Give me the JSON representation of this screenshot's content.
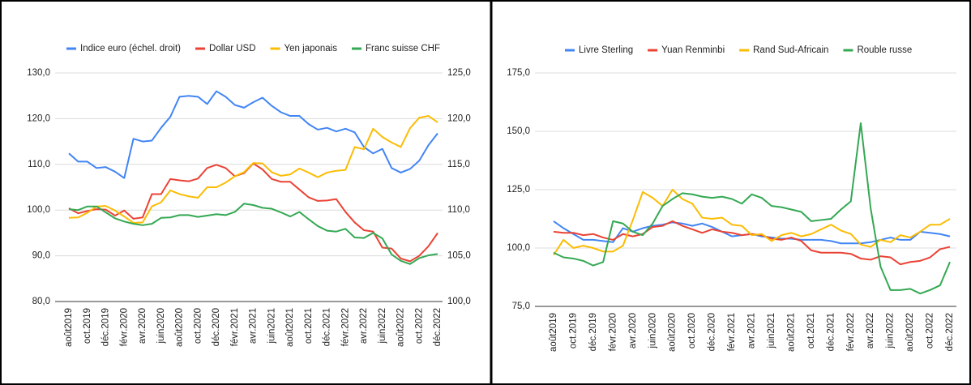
{
  "chart_data": [
    {
      "type": "line",
      "categories": [
        "août2019",
        null,
        "oct.2019",
        null,
        "déc.2019",
        null,
        "févr.2020",
        null,
        "avr.2020",
        null,
        "juin2020",
        null,
        "août2020",
        null,
        "oct.2020",
        null,
        "déc.2020",
        null,
        "févr.2021",
        null,
        "avr.2021",
        null,
        "juin2021",
        null,
        "août2021",
        null,
        "oct.2021",
        null,
        "déc.2021",
        null,
        "févr.2022",
        null,
        "avr.2022",
        null,
        "juin2022",
        null,
        "août2022",
        null,
        "oct.2022",
        null,
        "déc.2022"
      ],
      "series": [
        {
          "name": "Indice euro (échel. droit)",
          "color": "#4285f4",
          "axis": "y2",
          "values": [
            116.2,
            115.3,
            115.3,
            114.6,
            114.7,
            114.2,
            113.5,
            117.8,
            117.5,
            117.6,
            119.0,
            120.2,
            122.4,
            122.5,
            122.4,
            121.6,
            123.0,
            122.4,
            121.5,
            121.2,
            121.8,
            122.3,
            121.4,
            120.7,
            120.3,
            120.3,
            119.4,
            118.8,
            119.0,
            118.6,
            118.9,
            118.5,
            116.9,
            116.2,
            116.7,
            114.6,
            114.1,
            114.5,
            115.4,
            117.1,
            118.4
          ]
        },
        {
          "name": "Dollar USD",
          "color": "#ea4335",
          "values": [
            100.4,
            99.3,
            99.8,
            100.2,
            100.1,
            98.8,
            99.9,
            98.1,
            98.4,
            103.5,
            103.5,
            106.8,
            106.5,
            106.3,
            106.9,
            109.2,
            109.9,
            109.2,
            107.4,
            108.1,
            110.2,
            108.9,
            106.8,
            106.2,
            106.2,
            104.5,
            102.8,
            102.0,
            102.1,
            102.4,
            99.6,
            97.3,
            95.6,
            95.3,
            91.8,
            91.6,
            89.4,
            88.8,
            90.0,
            92.1,
            95.0
          ]
        },
        {
          "name": "Yen japonais",
          "color": "#fbbc04",
          "values": [
            98.3,
            98.4,
            99.4,
            100.8,
            100.9,
            99.9,
            98.6,
            97.2,
            97.3,
            100.8,
            101.7,
            104.3,
            103.5,
            103.0,
            102.7,
            105.0,
            105.0,
            106.0,
            107.4,
            108.3,
            110.3,
            110.2,
            108.3,
            107.5,
            107.8,
            109.1,
            108.2,
            107.2,
            108.2,
            108.6,
            108.8,
            113.8,
            113.3,
            117.8,
            116.0,
            114.8,
            113.8,
            117.9,
            120.2,
            120.6,
            119.2
          ]
        },
        {
          "name": "Franc suisse CHF",
          "color": "#34a853",
          "values": [
            100.2,
            100.0,
            100.8,
            100.8,
            99.5,
            98.2,
            97.5,
            97.0,
            96.7,
            97.0,
            98.3,
            98.4,
            98.9,
            98.9,
            98.5,
            98.8,
            99.1,
            98.9,
            99.6,
            101.4,
            101.1,
            100.5,
            100.3,
            99.5,
            98.6,
            99.6,
            98.0,
            96.5,
            95.5,
            95.3,
            95.9,
            94.0,
            93.9,
            95.0,
            93.8,
            90.3,
            88.9,
            88.2,
            89.5,
            90.1,
            90.4
          ]
        }
      ],
      "ylim": [
        80,
        130
      ],
      "yticks": [
        {
          "value": 80,
          "label": "80,0"
        },
        {
          "value": 90,
          "label": "90,0"
        },
        {
          "value": 100,
          "label": "100,0"
        },
        {
          "value": 110,
          "label": "110,0"
        },
        {
          "value": 120,
          "label": "120,0"
        },
        {
          "value": 130,
          "label": "130,0"
        }
      ],
      "y2lim": [
        100,
        125
      ],
      "y2ticks": [
        {
          "value": 100,
          "label": "100,0"
        },
        {
          "value": 105,
          "label": "105,0"
        },
        {
          "value": 110,
          "label": "110,0"
        },
        {
          "value": 115,
          "label": "115,0"
        },
        {
          "value": 120,
          "label": "120,0"
        },
        {
          "value": 125,
          "label": "125,0"
        }
      ],
      "grid": true,
      "legend": "top"
    },
    {
      "type": "line",
      "categories": [
        "août2019",
        null,
        "oct.2019",
        null,
        "déc.2019",
        null,
        "févr.2020",
        null,
        "avr.2020",
        null,
        "juin2020",
        null,
        "août2020",
        null,
        "oct.2020",
        null,
        "déc.2020",
        null,
        "févr.2021",
        null,
        "avr.2021",
        null,
        "juin2021",
        null,
        "août2021",
        null,
        "oct.2021",
        null,
        "déc.2021",
        null,
        "févr.2022",
        null,
        "avr.2022",
        null,
        "juin2022",
        null,
        "août2022",
        null,
        "oct.2022",
        null,
        "déc.2022"
      ],
      "series": [
        {
          "name": "Livre Sterling",
          "color": "#4285f4",
          "values": [
            111.5,
            108.5,
            106,
            103.5,
            103.5,
            103,
            102.5,
            108.5,
            107,
            108.5,
            109.5,
            110,
            111,
            110.5,
            109.5,
            110.5,
            109,
            107,
            105,
            105.5,
            106,
            105,
            104.5,
            104,
            104,
            103.5,
            103.5,
            103.5,
            103,
            102,
            102,
            102,
            102.5,
            103.5,
            104.5,
            103.5,
            103.5,
            107,
            106.5,
            106,
            105
          ]
        },
        {
          "name": "Yuan Renminbi",
          "color": "#ea4335",
          "values": [
            107,
            106.5,
            106.5,
            105.5,
            106,
            104.5,
            103.5,
            106,
            105,
            106,
            109,
            109.5,
            111.5,
            109.5,
            108,
            106.5,
            108,
            107,
            106.5,
            105.5,
            106,
            105.5,
            104,
            103.5,
            104.5,
            103,
            99,
            98,
            98,
            98,
            97.5,
            95.5,
            95,
            96.5,
            96,
            93,
            94,
            94.5,
            96,
            99.5,
            100.5
          ]
        },
        {
          "name": "Rand Sud-Africain",
          "color": "#fbbc04",
          "values": [
            97,
            103.5,
            100,
            101,
            100,
            98.5,
            98.5,
            101,
            112,
            124,
            121.5,
            118,
            125,
            121,
            119,
            113,
            112.5,
            113,
            110,
            109.5,
            105.5,
            106,
            103,
            105.5,
            106.5,
            105,
            106,
            108,
            110,
            107.5,
            106,
            101.5,
            100.5,
            103.5,
            102.5,
            105.5,
            104.5,
            107,
            110,
            110,
            112.5
          ]
        },
        {
          "name": "Rouble russe",
          "color": "#34a853",
          "values": [
            98,
            96,
            95.5,
            94.5,
            92.5,
            94,
            111.5,
            110.5,
            107,
            105.5,
            110.5,
            118,
            121,
            123.5,
            123,
            122,
            121.5,
            122,
            121,
            119,
            123,
            121.5,
            118,
            117.5,
            116.5,
            115.5,
            111.5,
            112,
            112.5,
            116.5,
            120,
            153.5,
            117,
            92,
            82,
            82,
            82.5,
            80.5,
            82,
            84,
            94
          ]
        }
      ],
      "ylim": [
        75,
        175
      ],
      "yticks": [
        {
          "value": 75,
          "label": "75,0"
        },
        {
          "value": 100,
          "label": "100,0"
        },
        {
          "value": 125,
          "label": "125,0"
        },
        {
          "value": 150,
          "label": "150,0"
        },
        {
          "value": 175,
          "label": "175,0"
        }
      ],
      "grid": true,
      "legend": "top"
    }
  ]
}
